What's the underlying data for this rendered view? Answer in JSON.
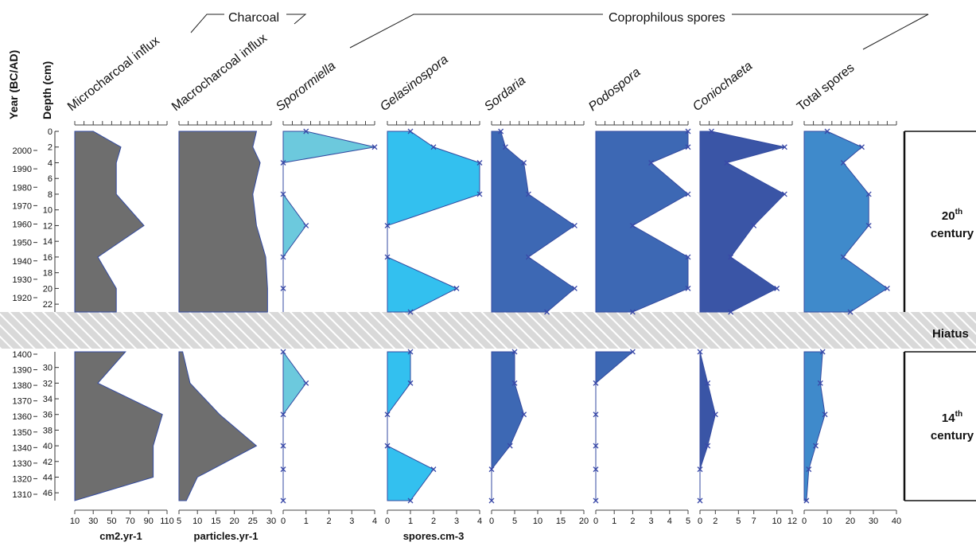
{
  "chart_data": {
    "type": "area",
    "title": "",
    "y_axis": {
      "year_label": "Year (BC/AD)",
      "depth_label": "Depth (cm)",
      "years_upper": [
        "2000",
        "1990",
        "1980",
        "1970",
        "1960",
        "1950",
        "1940",
        "1930",
        "1920"
      ],
      "depths_upper": [
        0,
        2,
        4,
        6,
        8,
        10,
        12,
        14,
        16,
        18,
        20,
        22
      ],
      "years_lower": [
        "1400",
        "1390",
        "1380",
        "1370",
        "1360",
        "1350",
        "1340",
        "1330",
        "1320",
        "1310"
      ],
      "depths_lower": [
        30,
        32,
        34,
        36,
        38,
        40,
        42,
        44,
        46
      ],
      "depth_range_upper": [
        0,
        23
      ],
      "depth_range_lower": [
        28,
        47
      ]
    },
    "groups": [
      {
        "label": "Charcoal"
      },
      {
        "label": "Coprophilous spores"
      }
    ],
    "unit_labels": [
      "cm2.yr-1",
      "particles.yr-1",
      "spores.cm-3"
    ],
    "hiatus_label": "Hiatus",
    "periods": [
      {
        "sup": "th",
        "num": "20",
        "word": "century"
      },
      {
        "sup": "th",
        "num": "14",
        "word": "century"
      }
    ],
    "series": [
      {
        "name": "Microcharcoal influx",
        "italic": false,
        "color": "#6e6e6e",
        "xlim": [
          10,
          110
        ],
        "ticks": [
          10,
          30,
          50,
          70,
          90,
          110
        ],
        "markers": false,
        "upper": [
          [
            0,
            30
          ],
          [
            2,
            60
          ],
          [
            4,
            55
          ],
          [
            6,
            55
          ],
          [
            8,
            55
          ],
          [
            12,
            85
          ],
          [
            16,
            35
          ],
          [
            20,
            55
          ],
          [
            23,
            55
          ]
        ],
        "lower": [
          [
            28,
            65
          ],
          [
            32,
            35
          ],
          [
            36,
            105
          ],
          [
            40,
            95
          ],
          [
            44,
            95
          ],
          [
            47,
            10
          ]
        ]
      },
      {
        "name": "Macrocharcoal influx",
        "italic": false,
        "color": "#6e6e6e",
        "xlim": [
          5,
          30
        ],
        "ticks": [
          5,
          10,
          15,
          20,
          25,
          30
        ],
        "markers": false,
        "upper": [
          [
            0,
            26
          ],
          [
            2,
            25
          ],
          [
            4,
            27
          ],
          [
            8,
            25
          ],
          [
            12,
            26
          ],
          [
            16,
            28.5
          ],
          [
            20,
            29
          ],
          [
            23,
            29
          ]
        ],
        "lower": [
          [
            28,
            6
          ],
          [
            32,
            8
          ],
          [
            36,
            16
          ],
          [
            40,
            26
          ],
          [
            44,
            10
          ],
          [
            47,
            7
          ]
        ]
      },
      {
        "name": "Sporormiella",
        "italic": true,
        "color": "#6cc9dd",
        "xlim": [
          0,
          4
        ],
        "ticks": [
          0,
          1,
          2,
          3,
          4
        ],
        "markers": true,
        "upper": [
          [
            0,
            1
          ],
          [
            2,
            4
          ],
          [
            4,
            0
          ],
          [
            8,
            0
          ],
          [
            12,
            1
          ],
          [
            16,
            0
          ],
          [
            20,
            0
          ]
        ],
        "lower": [
          [
            28,
            0
          ],
          [
            32,
            1
          ],
          [
            36,
            0
          ],
          [
            40,
            0
          ],
          [
            43,
            0
          ],
          [
            47,
            0
          ]
        ]
      },
      {
        "name": "Gelasinospora",
        "italic": true,
        "color": "#33c0ef",
        "xlim": [
          0,
          4
        ],
        "ticks": [
          0,
          1,
          2,
          3,
          4
        ],
        "markers": true,
        "upper": [
          [
            0,
            1
          ],
          [
            2,
            2
          ],
          [
            4,
            4
          ],
          [
            8,
            4
          ],
          [
            12,
            0
          ],
          [
            16,
            0
          ],
          [
            20,
            3
          ],
          [
            23,
            1
          ]
        ],
        "lower": [
          [
            28,
            1
          ],
          [
            32,
            1
          ],
          [
            36,
            0
          ],
          [
            40,
            0
          ],
          [
            43,
            2
          ],
          [
            47,
            1
          ]
        ]
      },
      {
        "name": "Sordaria",
        "italic": true,
        "color": "#3d68b4",
        "xlim": [
          0,
          20
        ],
        "ticks": [
          0,
          5,
          10,
          15,
          20
        ],
        "markers": true,
        "upper": [
          [
            0,
            2
          ],
          [
            2,
            3
          ],
          [
            4,
            7
          ],
          [
            8,
            8
          ],
          [
            12,
            18
          ],
          [
            16,
            8
          ],
          [
            20,
            18
          ],
          [
            23,
            12
          ]
        ],
        "lower": [
          [
            28,
            5
          ],
          [
            32,
            5
          ],
          [
            36,
            7
          ],
          [
            40,
            4
          ],
          [
            43,
            0
          ],
          [
            47,
            0
          ]
        ]
      },
      {
        "name": "Podospora",
        "italic": true,
        "color": "#3d68b4",
        "xlim": [
          0,
          5
        ],
        "ticks": [
          0,
          1,
          2,
          3,
          4,
          5
        ],
        "markers": true,
        "upper": [
          [
            0,
            5
          ],
          [
            2,
            5
          ],
          [
            4,
            3
          ],
          [
            8,
            5
          ],
          [
            12,
            2
          ],
          [
            16,
            5
          ],
          [
            20,
            5
          ],
          [
            23,
            2
          ]
        ],
        "lower": [
          [
            28,
            2
          ],
          [
            32,
            0
          ],
          [
            36,
            0
          ],
          [
            40,
            0
          ],
          [
            43,
            0
          ],
          [
            47,
            0
          ]
        ]
      },
      {
        "name": "Coniochaeta",
        "italic": true,
        "color": "#3a55a6",
        "xlim": [
          0,
          12
        ],
        "ticks": [
          0,
          2,
          5,
          7,
          10,
          12
        ],
        "markers": true,
        "upper": [
          [
            0,
            1.5
          ],
          [
            2,
            11
          ],
          [
            4,
            3.5
          ],
          [
            8,
            11
          ],
          [
            12,
            7
          ],
          [
            16,
            4
          ],
          [
            20,
            10
          ],
          [
            23,
            4
          ]
        ],
        "lower": [
          [
            28,
            0
          ],
          [
            32,
            1
          ],
          [
            36,
            2
          ],
          [
            40,
            1
          ],
          [
            43,
            0
          ],
          [
            47,
            0
          ]
        ]
      },
      {
        "name": "Total spores",
        "italic": false,
        "color": "#3f8acb",
        "xlim": [
          0,
          40
        ],
        "ticks": [
          0,
          10,
          20,
          30,
          40
        ],
        "markers": true,
        "upper": [
          [
            0,
            10
          ],
          [
            2,
            25
          ],
          [
            4,
            17
          ],
          [
            8,
            28
          ],
          [
            12,
            28
          ],
          [
            16,
            17
          ],
          [
            20,
            36
          ],
          [
            23,
            20
          ]
        ],
        "lower": [
          [
            28,
            8
          ],
          [
            32,
            7
          ],
          [
            36,
            9
          ],
          [
            40,
            5
          ],
          [
            43,
            2
          ],
          [
            47,
            1
          ]
        ]
      }
    ]
  }
}
